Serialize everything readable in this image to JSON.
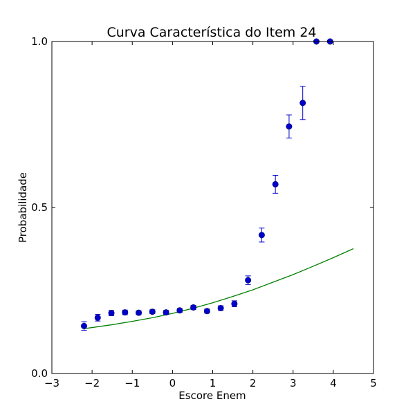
{
  "chart_data": {
    "type": "scatter",
    "title": "Curva Característica do Item 24",
    "xlabel": "Escore Enem",
    "ylabel": "Probabilidade",
    "xlim": [
      -3,
      5
    ],
    "ylim": [
      0.0,
      1.0
    ],
    "xticks": [
      -3,
      -2,
      -1,
      0,
      1,
      2,
      3,
      4,
      5
    ],
    "xtick_labels": [
      "−3",
      "−2",
      "−1",
      "0",
      "1",
      "2",
      "3",
      "4",
      "5"
    ],
    "yticks": [
      0.0,
      0.5,
      1.0
    ],
    "ytick_labels": [
      "0.0",
      "0.5",
      "1.0"
    ],
    "grid": false,
    "series": [
      {
        "kind": "points_with_error_bars",
        "color": "#0000cc",
        "points": [
          {
            "x": -2.2,
            "y": 0.143,
            "err": 0.013
          },
          {
            "x": -1.86,
            "y": 0.168,
            "err": 0.01
          },
          {
            "x": -1.52,
            "y": 0.182,
            "err": 0.008
          },
          {
            "x": -1.18,
            "y": 0.184,
            "err": 0.007
          },
          {
            "x": -0.84,
            "y": 0.183,
            "err": 0.006
          },
          {
            "x": -0.5,
            "y": 0.186,
            "err": 0.006
          },
          {
            "x": -0.16,
            "y": 0.184,
            "err": 0.006
          },
          {
            "x": 0.18,
            "y": 0.19,
            "err": 0.006
          },
          {
            "x": 0.52,
            "y": 0.199,
            "err": 0.006
          },
          {
            "x": 0.86,
            "y": 0.188,
            "err": 0.006
          },
          {
            "x": 1.2,
            "y": 0.197,
            "err": 0.007
          },
          {
            "x": 1.54,
            "y": 0.21,
            "err": 0.009
          },
          {
            "x": 1.88,
            "y": 0.281,
            "err": 0.013
          },
          {
            "x": 2.22,
            "y": 0.417,
            "err": 0.021
          },
          {
            "x": 2.56,
            "y": 0.57,
            "err": 0.027
          },
          {
            "x": 2.9,
            "y": 0.744,
            "err": 0.035
          },
          {
            "x": 3.24,
            "y": 0.815,
            "err": 0.05
          },
          {
            "x": 3.58,
            "y": 1.0,
            "err": 0.0
          },
          {
            "x": 3.92,
            "y": 1.0,
            "err": 0.0
          }
        ]
      },
      {
        "kind": "line",
        "color": "#008000",
        "points": [
          {
            "x": -2.2,
            "y": 0.135
          },
          {
            "x": -1.5,
            "y": 0.147
          },
          {
            "x": -1.0,
            "y": 0.157
          },
          {
            "x": -0.5,
            "y": 0.168
          },
          {
            "x": 0.0,
            "y": 0.181
          },
          {
            "x": 0.5,
            "y": 0.196
          },
          {
            "x": 1.0,
            "y": 0.213
          },
          {
            "x": 1.5,
            "y": 0.232
          },
          {
            "x": 2.0,
            "y": 0.252
          },
          {
            "x": 2.5,
            "y": 0.275
          },
          {
            "x": 3.0,
            "y": 0.298
          },
          {
            "x": 3.5,
            "y": 0.323
          },
          {
            "x": 4.0,
            "y": 0.349
          },
          {
            "x": 4.5,
            "y": 0.376
          }
        ]
      }
    ]
  }
}
